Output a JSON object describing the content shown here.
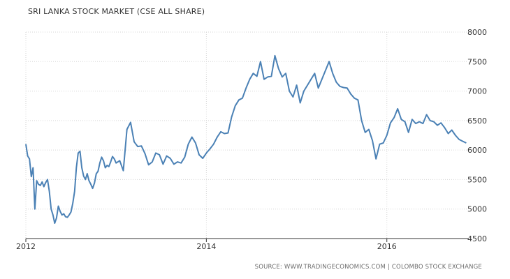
{
  "chart_data": {
    "type": "line",
    "title": "SRI LANKA STOCK MARKET (CSE ALL SHARE)",
    "source_text": "SOURCE: WWW.TRADINGECONOMICS.COM | COLOMBO STOCK EXCHANGE",
    "x_ticks": [
      "2012",
      "2014",
      "2016"
    ],
    "y_ticks": [
      4500,
      5000,
      5500,
      6000,
      6500,
      7000,
      7500,
      8000
    ],
    "ylim": [
      4500,
      8000
    ],
    "xlim": [
      2012.0,
      2016.9
    ],
    "grid": true,
    "legend": "none",
    "colors": {
      "line": "#4b81b5",
      "grid": "#d6d6d6",
      "axis": "#333333"
    },
    "series": [
      {
        "x": [
          2012.0,
          2012.02,
          2012.04,
          2012.06,
          2012.08,
          2012.1,
          2012.12,
          2012.14,
          2012.16,
          2012.18,
          2012.2,
          2012.22,
          2012.24,
          2012.26,
          2012.28,
          2012.3,
          2012.32,
          2012.34,
          2012.36,
          2012.38,
          2012.4,
          2012.42,
          2012.44,
          2012.46,
          2012.48,
          2012.5,
          2012.52,
          2012.54,
          2012.56,
          2012.58,
          2012.6,
          2012.62,
          2012.64,
          2012.66,
          2012.68,
          2012.7,
          2012.72,
          2012.74,
          2012.76,
          2012.78,
          2012.8,
          2012.82,
          2012.84,
          2012.86,
          2012.88,
          2012.9,
          2012.92,
          2012.94,
          2012.96,
          2012.98,
          2013.0,
          2013.04,
          2013.08,
          2013.12,
          2013.16,
          2013.2,
          2013.24,
          2013.28,
          2013.32,
          2013.36,
          2013.4,
          2013.44,
          2013.48,
          2013.52,
          2013.56,
          2013.6,
          2013.64,
          2013.68,
          2013.72,
          2013.76,
          2013.8,
          2013.84,
          2013.88,
          2013.92,
          2013.96,
          2014.0,
          2014.04,
          2014.08,
          2014.12,
          2014.16,
          2014.2,
          2014.24,
          2014.28,
          2014.32,
          2014.36,
          2014.4,
          2014.44,
          2014.48,
          2014.52,
          2014.56,
          2014.6,
          2014.64,
          2014.68,
          2014.72,
          2014.76,
          2014.8,
          2014.84,
          2014.88,
          2014.92,
          2014.96,
          2015.0,
          2015.04,
          2015.08,
          2015.12,
          2015.16,
          2015.2,
          2015.24,
          2015.28,
          2015.32,
          2015.36,
          2015.4,
          2015.44,
          2015.48,
          2015.52,
          2015.56,
          2015.6,
          2015.64,
          2015.68,
          2015.72,
          2015.76,
          2015.8,
          2015.84,
          2015.88,
          2015.92,
          2015.96,
          2016.0,
          2016.04,
          2016.08,
          2016.12,
          2016.16,
          2016.2,
          2016.24,
          2016.28,
          2016.32,
          2016.36,
          2016.4,
          2016.44,
          2016.48,
          2016.52,
          2016.56,
          2016.6,
          2016.64,
          2016.68,
          2016.72,
          2016.76,
          2016.8,
          2016.84,
          2016.88
        ],
        "y": [
          6100,
          5900,
          5850,
          5550,
          5700,
          5000,
          5480,
          5420,
          5400,
          5460,
          5380,
          5450,
          5500,
          5300,
          5000,
          4900,
          4760,
          4850,
          5050,
          4960,
          4900,
          4920,
          4870,
          4860,
          4900,
          4950,
          5100,
          5300,
          5700,
          5950,
          5980,
          5700,
          5560,
          5500,
          5600,
          5480,
          5420,
          5350,
          5440,
          5600,
          5640,
          5780,
          5880,
          5820,
          5700,
          5740,
          5720,
          5800,
          5890,
          5850,
          5780,
          5820,
          5650,
          6350,
          6470,
          6140,
          6060,
          6070,
          5940,
          5750,
          5800,
          5950,
          5920,
          5760,
          5900,
          5860,
          5760,
          5800,
          5780,
          5880,
          6100,
          6220,
          6120,
          5920,
          5860,
          5950,
          6020,
          6100,
          6220,
          6310,
          6280,
          6290,
          6560,
          6750,
          6850,
          6880,
          7050,
          7200,
          7300,
          7250,
          7500,
          7200,
          7240,
          7250,
          7600,
          7380,
          7240,
          7300,
          7000,
          6900,
          7100,
          6800,
          7000,
          7100,
          7200,
          7300,
          7050,
          7200,
          7350,
          7500,
          7300,
          7150,
          7080,
          7060,
          7050,
          6950,
          6880,
          6850,
          6500,
          6300,
          6350,
          6160,
          5850,
          6100,
          6120,
          6250,
          6460,
          6550,
          6700,
          6520,
          6480,
          6300,
          6520,
          6450,
          6480,
          6450,
          6600,
          6500,
          6480,
          6420,
          6460,
          6380,
          6280,
          6340,
          6250,
          6180,
          6150,
          6120
        ]
      }
    ]
  }
}
